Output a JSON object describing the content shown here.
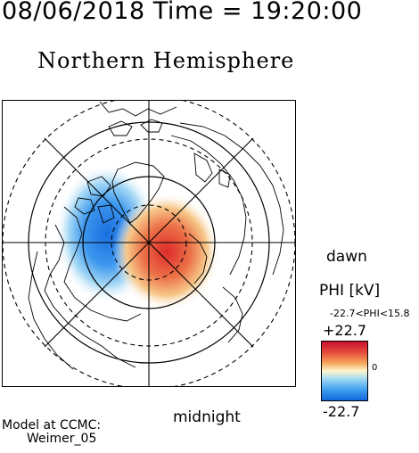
{
  "header": {
    "timestamp": "08/06/2018 Time = 19:20:00",
    "hemisphere": "Northern Hemisphere"
  },
  "map": {
    "labels": {
      "dawn": "dawn",
      "midnight": "midnight"
    },
    "colors": {
      "positive": "#e0282a",
      "negative": "#1a6fe0",
      "neutral": "#ffffff",
      "grid": "#000000"
    }
  },
  "colorbar": {
    "title": "PHI [kV]",
    "range_text": "-22.7<PHI<15.8",
    "max_label": "+22.7",
    "zero_label": "0",
    "min_label": "-22.7"
  },
  "credit": {
    "line1": "Model at CCMC:",
    "line2": "Weimer_05"
  }
}
